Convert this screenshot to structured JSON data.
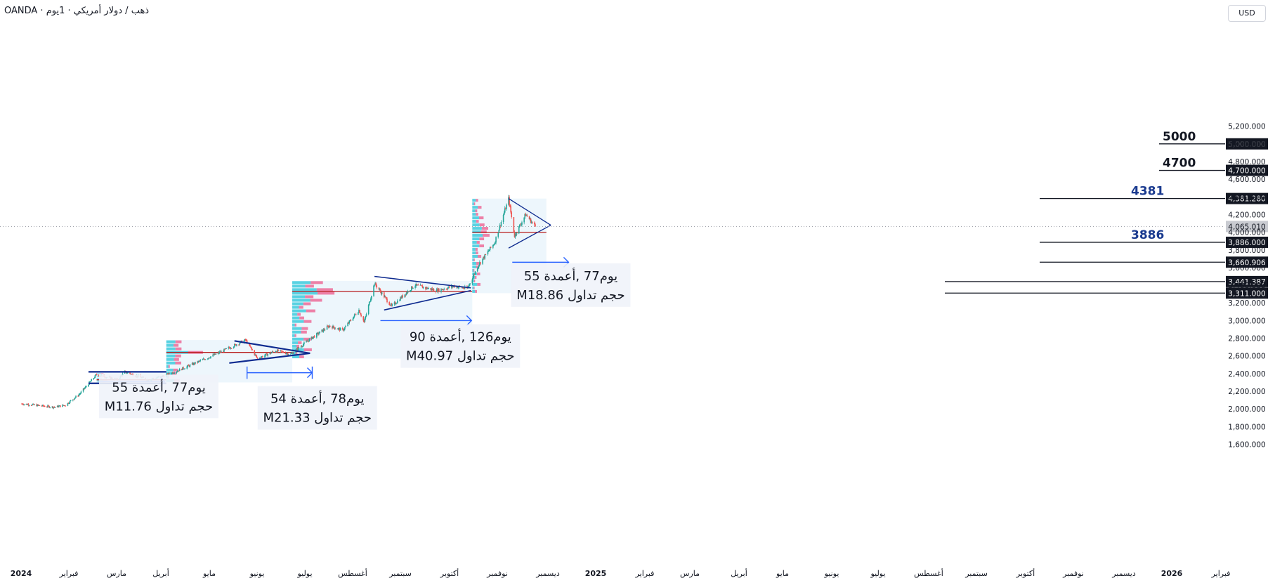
{
  "header": {
    "symbol": "OANDA · ذهب / دولار أمريكي · 1يوم",
    "currency_button": "USD"
  },
  "chart_data": {
    "type": "candlestick",
    "title": "",
    "xlabel": "",
    "ylabel": "",
    "ylim": [
      1600,
      5300
    ],
    "y_ticks": [
      "5,200.000",
      "5,000.000",
      "4,800.000",
      "4,600.000",
      "4,400.000",
      "4,200.000",
      "4,000.000",
      "3,800.000",
      "3,600.000",
      "3,400.000",
      "3,200.000",
      "3,000.000",
      "2,800.000",
      "2,600.000",
      "2,400.000",
      "2,200.000",
      "2,000.000",
      "1,800.000",
      "1,600.000"
    ],
    "x_ticks": [
      "2024",
      "فبراير",
      "مارس",
      "أبريل",
      "مايو",
      "يونيو",
      "يوليو",
      "أغسطس",
      "سبتمبر",
      "أكتوبر",
      "نوفمبر",
      "ديسمبر",
      "2025",
      "فبراير",
      "مارس",
      "أبريل",
      "مايو",
      "يونيو",
      "يوليو",
      "أغسطس",
      "سبتمبر",
      "أكتوبر",
      "نوفمبر",
      "ديسمبر",
      "2026",
      "فبراير"
    ],
    "price_path": [
      {
        "date": "2024-01-01",
        "price": 2060
      },
      {
        "date": "2024-02-15",
        "price": 2020
      },
      {
        "date": "2024-03-01",
        "price": 2045
      },
      {
        "date": "2024-03-20",
        "price": 2170
      },
      {
        "date": "2024-04-12",
        "price": 2390
      },
      {
        "date": "2024-05-10",
        "price": 2330
      },
      {
        "date": "2024-05-20",
        "price": 2420
      },
      {
        "date": "2024-06-20",
        "price": 2330
      },
      {
        "date": "2024-07-10",
        "price": 2370
      },
      {
        "date": "2024-08-01",
        "price": 2440
      },
      {
        "date": "2024-09-20",
        "price": 2620
      },
      {
        "date": "2024-10-30",
        "price": 2780
      },
      {
        "date": "2024-11-15",
        "price": 2570
      },
      {
        "date": "2024-12-10",
        "price": 2660
      },
      {
        "date": "2024-12-30",
        "price": 2620
      },
      {
        "date": "2025-01-20",
        "price": 2760
      },
      {
        "date": "2025-02-20",
        "price": 2940
      },
      {
        "date": "2025-03-10",
        "price": 2890
      },
      {
        "date": "2025-04-01",
        "price": 3120
      },
      {
        "date": "2025-04-08",
        "price": 2980
      },
      {
        "date": "2025-04-22",
        "price": 3420
      },
      {
        "date": "2025-05-15",
        "price": 3160
      },
      {
        "date": "2025-06-15",
        "price": 3400
      },
      {
        "date": "2025-07-15",
        "price": 3340
      },
      {
        "date": "2025-08-08",
        "price": 3390
      },
      {
        "date": "2025-08-25",
        "price": 3360
      },
      {
        "date": "2025-09-10",
        "price": 3640
      },
      {
        "date": "2025-10-01",
        "price": 3880
      },
      {
        "date": "2025-10-20",
        "price": 4380
      },
      {
        "date": "2025-10-28",
        "price": 3960
      },
      {
        "date": "2025-11-12",
        "price": 4200
      },
      {
        "date": "2025-11-25",
        "price": 4065
      }
    ],
    "current_price": "4,065.010",
    "price_labels": [
      {
        "value": 5000,
        "label": "5,000.000"
      },
      {
        "value": 4700,
        "label": "4,700.000"
      },
      {
        "value": 4381.28,
        "label": "4,381.280"
      },
      {
        "value": 3886,
        "label": "3,886.000"
      },
      {
        "value": 3660.906,
        "label": "3,660.906"
      },
      {
        "value": 3441.387,
        "label": "3,441.387"
      },
      {
        "value": 3311,
        "label": "3,311.000"
      }
    ],
    "level_annotations": [
      {
        "value": 5000,
        "text": "5000",
        "color": "#131722"
      },
      {
        "value": 4700,
        "text": "4700",
        "color": "#131722"
      },
      {
        "value": 4381.28,
        "text": "4381",
        "color": "#1a3a8f"
      },
      {
        "value": 3886,
        "text": "3886",
        "color": "#1a3a8f"
      }
    ],
    "consolidations": [
      {
        "start": "2024-04-12",
        "end": "2024-07-15",
        "low": 2290,
        "high": 2420,
        "poc": 2330,
        "stats": {
          "line1": "يوم77 ,أعمدة 55",
          "line2": "Mحجم تداول 11.76"
        }
      },
      {
        "start": "2024-07-15",
        "end": "2025-01-01",
        "low": 2300,
        "high": 2780,
        "poc": 2640,
        "stats": {
          "line1": "يوم78 ,أعمدة 54",
          "line2": "Mحجم تداول 21.33"
        }
      },
      {
        "start": "2025-01-01",
        "end": "2025-09-01",
        "low": 2570,
        "high": 3450,
        "poc": 3330,
        "stats": {
          "line1": "يوم126 ,أعمدة 90",
          "line2": "Mحجم تداول 40.97"
        }
      },
      {
        "start": "2025-09-01",
        "end": "2025-12-10",
        "low": 3310,
        "high": 4381,
        "poc": 4000,
        "stats": {
          "line1": "يوم77 ,أعمدة 55",
          "line2": "Mحجم تداول 18.86"
        }
      }
    ],
    "colors": {
      "up": "#26a69a",
      "down": "#ef5350",
      "pattern": "#0d2a8f",
      "measure": "#2962ff",
      "poc": "#b71c1c",
      "profile_up": "#26c6da",
      "profile_down": "#ec407a",
      "zone": "#e8f4fb"
    }
  }
}
